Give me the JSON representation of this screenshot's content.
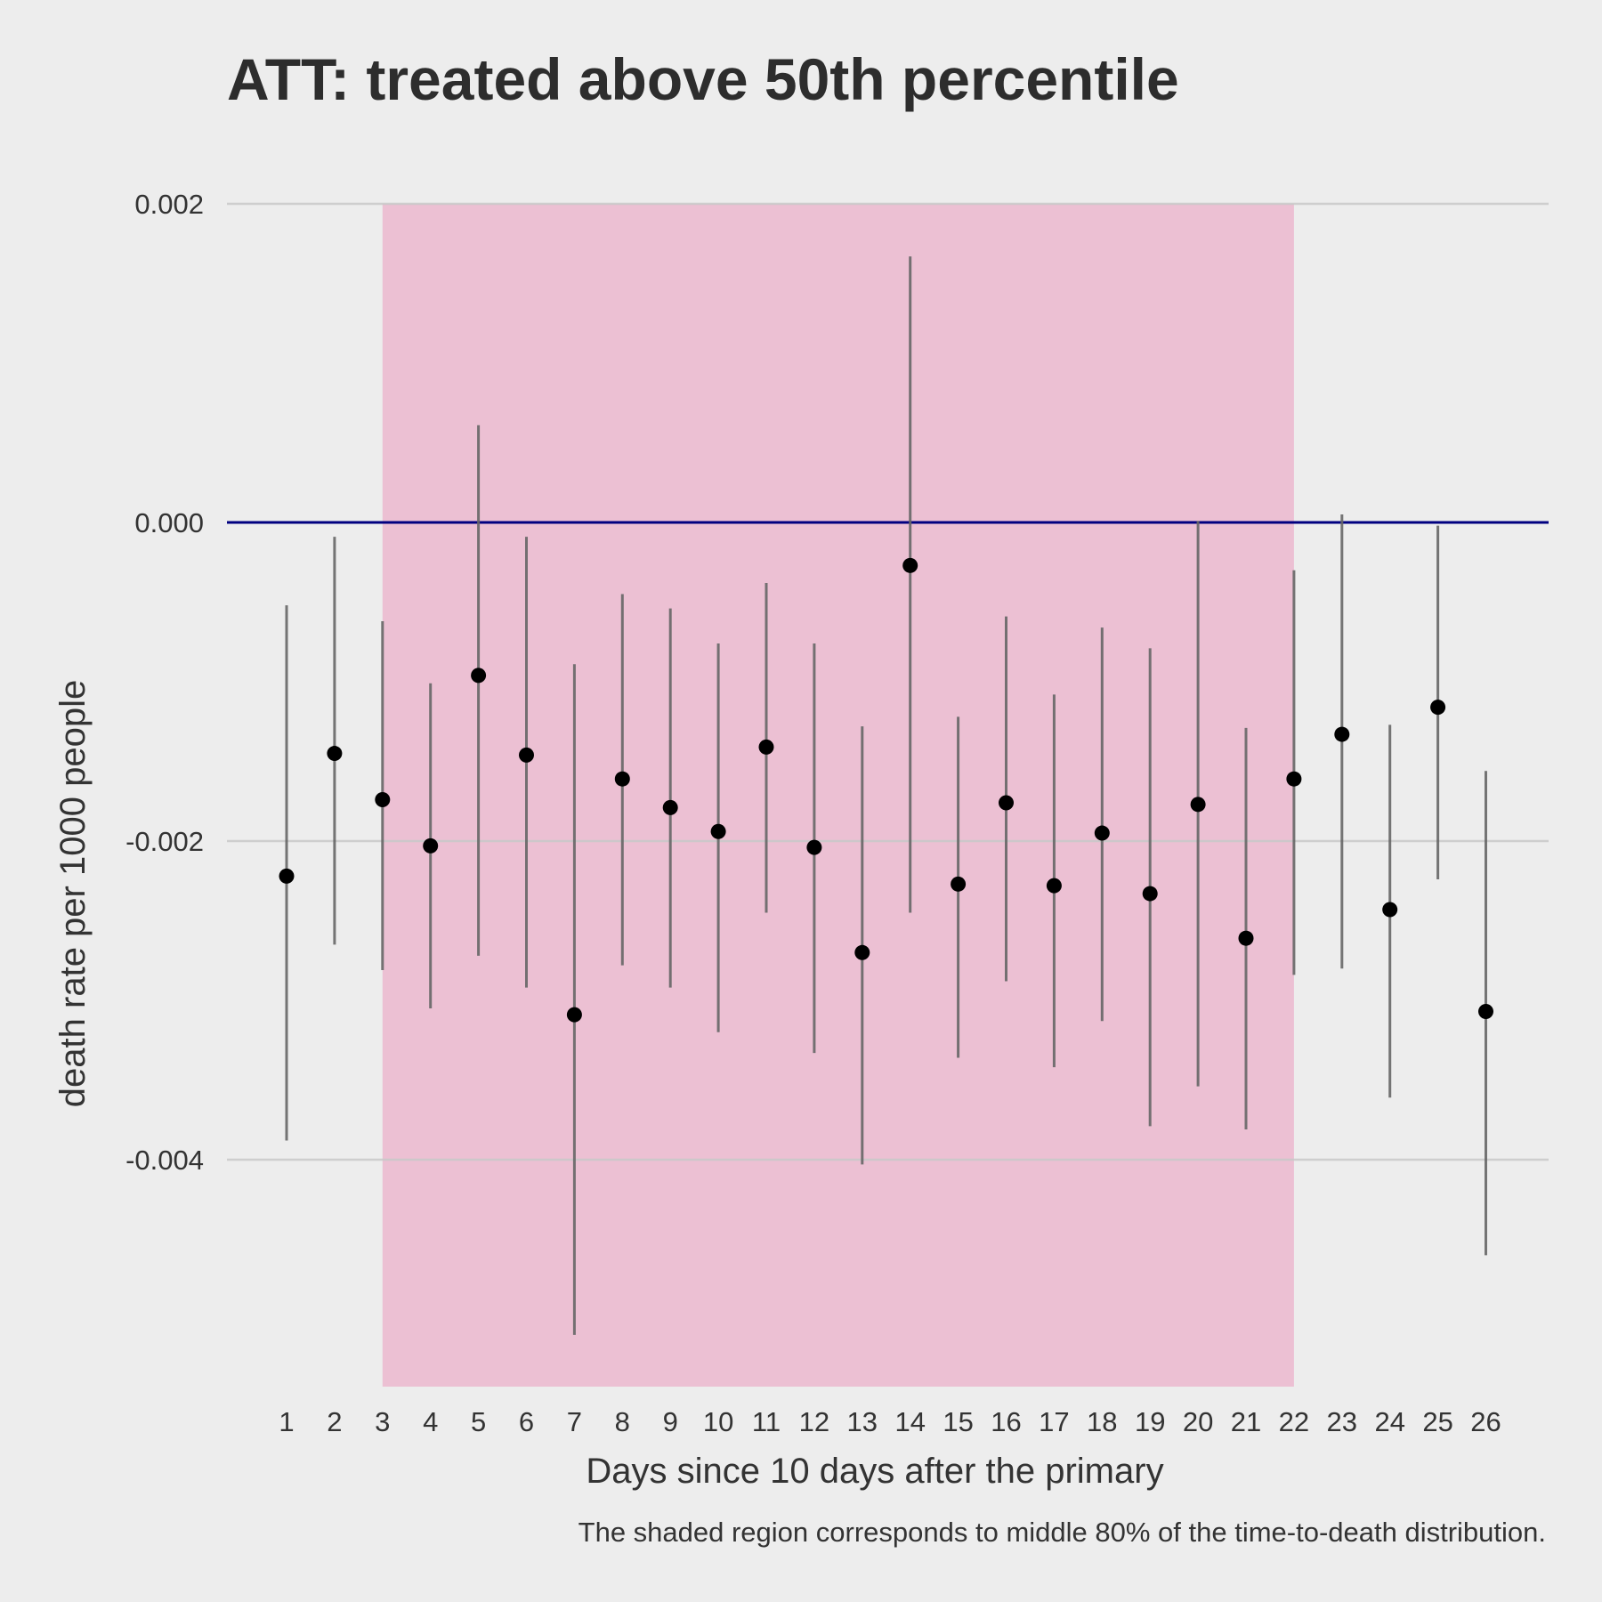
{
  "chart_data": {
    "type": "scatter",
    "title": "ATT: treated above 50th percentile",
    "xlabel": "Days since 10 days after the primary",
    "ylabel": "death rate per 1000 people",
    "caption": "The shaded region corresponds to middle 80% of the time-to-death distribution.",
    "categories": [
      "1",
      "2",
      "3",
      "4",
      "5",
      "6",
      "7",
      "8",
      "9",
      "10",
      "11",
      "12",
      "13",
      "14",
      "15",
      "16",
      "17",
      "18",
      "19",
      "20",
      "21",
      "22",
      "23",
      "24",
      "25",
      "26"
    ],
    "y_ticks": [
      0.002,
      0.0,
      -0.002,
      -0.004
    ],
    "y_tick_labels": [
      "0.002",
      "0.000",
      "-0.002",
      "-0.004"
    ],
    "ylim": [
      -0.00545,
      0.002
    ],
    "reference_line": 0.0,
    "shaded_region": {
      "x_start": 3,
      "x_end": 22
    },
    "series": [
      {
        "point": [
          -0.00222,
          -0.00145,
          -0.00174,
          -0.00203,
          -0.00096,
          -0.00146,
          -0.00309,
          -0.00161,
          -0.00179,
          -0.00194,
          -0.00141,
          -0.00204,
          -0.0027,
          -0.00027,
          -0.00227,
          -0.00176,
          -0.00228,
          -0.00195,
          -0.00233,
          -0.00177,
          -0.00261,
          -0.00161,
          -0.00133,
          -0.00243,
          -0.00116,
          -0.00307
        ],
        "lower": [
          -0.00388,
          -0.00265,
          -0.00281,
          -0.00305,
          -0.00272,
          -0.00292,
          -0.0051,
          -0.00278,
          -0.00292,
          -0.0032,
          -0.00245,
          -0.00333,
          -0.00403,
          -0.00245,
          -0.00336,
          -0.00288,
          -0.00342,
          -0.00313,
          -0.00379,
          -0.00354,
          -0.00381,
          -0.00284,
          -0.0028,
          -0.00361,
          -0.00224,
          -0.0046
        ],
        "upper": [
          -0.00052,
          -9e-05,
          -0.00062,
          -0.00101,
          0.00061,
          -9e-05,
          -0.00089,
          -0.00045,
          -0.00054,
          -0.00076,
          -0.00038,
          -0.00076,
          -0.00128,
          0.00167,
          -0.00122,
          -0.00059,
          -0.00108,
          -0.00066,
          -0.00079,
          1e-05,
          -0.00129,
          -0.0003,
          5e-05,
          -0.00127,
          -2e-05,
          -0.00156
        ]
      }
    ],
    "colors": {
      "background": "#ededed",
      "shade": "#ecc0d3",
      "grid": "#c8c8c8",
      "zero_line": "#000080",
      "errorbar": "#666666",
      "point": "#000000",
      "text": "#333333"
    }
  }
}
